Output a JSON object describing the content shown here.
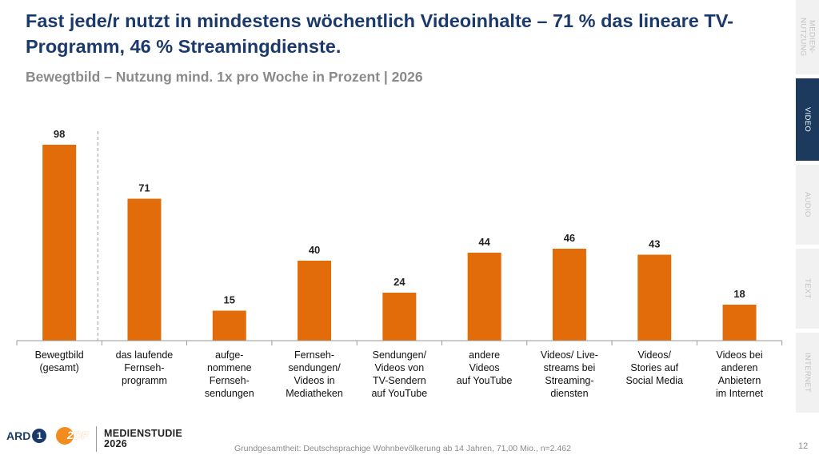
{
  "title": "Fast jede/r nutzt in mindestens wöchentlich Videoinhalte – 71 % das lineare TV-Programm, 46 % Streamingdienste.",
  "subtitle": "Bewegtbild – Nutzung mind. 1x pro Woche in Prozent | 2026",
  "nav": {
    "tabs": [
      {
        "label": "MEDIEN-\nNUTZUNG",
        "active": false
      },
      {
        "label": "VIDEO",
        "active": true
      },
      {
        "label": "AUDIO",
        "active": false
      },
      {
        "label": "TEXT",
        "active": false
      },
      {
        "label": "INTERNET",
        "active": false
      }
    ]
  },
  "chart_data": {
    "type": "bar",
    "categories": [
      "Bewegtbild\n(gesamt)",
      "das laufende\nFernseh-\nprogramm",
      "aufge-\nnommene\nFernseh-\nsendungen",
      "Fernseh-\nsendungen/\nVideos in\nMediatheken",
      "Sendungen/\nVideos von\nTV-Sendern\nauf YouTube",
      "andere\nVideos\nauf YouTube",
      "Videos/ Live-\nstreams bei\nStreaming-\ndiensten",
      "Videos/\nStories auf\nSocial Media",
      "Videos bei\nanderen\nAnbietern\nim Internet"
    ],
    "values": [
      98,
      71,
      15,
      40,
      24,
      44,
      46,
      43,
      18
    ],
    "bar_color": "#e36c0a",
    "ylim": [
      0,
      100
    ],
    "grid": false,
    "separator_after_index": 0
  },
  "footer": {
    "ard_logo_text": "ARD",
    "ard_one": "1",
    "zdf_logo_text": "2DF",
    "brand_line1": "MEDIENSTUDIE",
    "brand_line2": "2026",
    "source": "Grundgesamtheit: Deutschsprachige Wohnbevölkerung ab 14 Jahren, 71,00 Mio., n=2.462",
    "page_number": "12"
  }
}
